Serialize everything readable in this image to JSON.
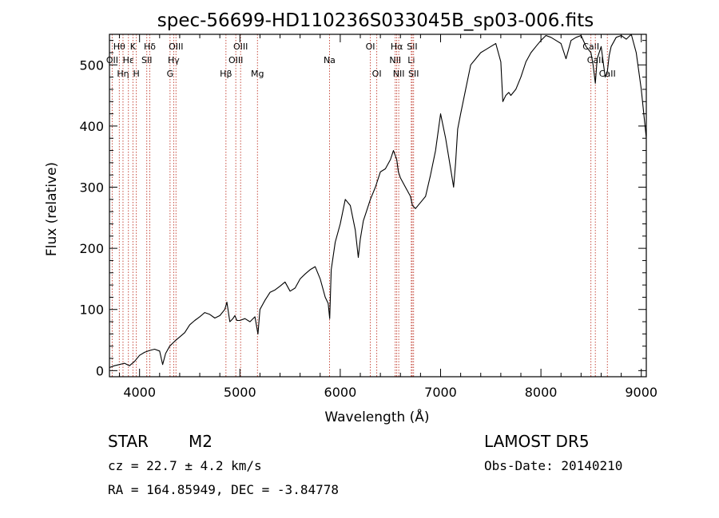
{
  "chart_data": {
    "type": "line",
    "title": "spec-56699-HD110236S033045B_sp03-006.fits",
    "xlabel": "Wavelength (Å)",
    "ylabel": "Flux (relative)",
    "xlim": [
      3700,
      9050
    ],
    "ylim": [
      -10,
      550
    ],
    "xticks": [
      4000,
      5000,
      6000,
      7000,
      8000,
      9000
    ],
    "yticks": [
      0,
      100,
      200,
      300,
      400,
      500
    ],
    "grid": false,
    "line_color": "#000000",
    "marker_color": "#c0392b",
    "series": [
      {
        "x": [
          3700,
          3750,
          3800,
          3850,
          3900,
          3950,
          4000,
          4050,
          4100,
          4150,
          4200,
          4230,
          4260,
          4300,
          4350,
          4400,
          4450,
          4500,
          4550,
          4600,
          4650,
          4700,
          4750,
          4800,
          4850,
          4870,
          4900,
          4930,
          4950,
          4970,
          5000,
          5050,
          5100,
          5150,
          5180,
          5200,
          5250,
          5300,
          5350,
          5400,
          5450,
          5500,
          5550,
          5600,
          5650,
          5700,
          5750,
          5800,
          5850,
          5880,
          5895,
          5910,
          5950,
          6000,
          6050,
          6100,
          6150,
          6180,
          6200,
          6230,
          6260,
          6300,
          6350,
          6400,
          6450,
          6500,
          6530,
          6563,
          6580,
          6600,
          6650,
          6700,
          6720,
          6750,
          6800,
          6850,
          6900,
          6950,
          7000,
          7050,
          7100,
          7130,
          7150,
          7170,
          7200,
          7250,
          7300,
          7350,
          7400,
          7450,
          7500,
          7550,
          7600,
          7620,
          7650,
          7680,
          7700,
          7750,
          7800,
          7850,
          7900,
          7950,
          8000,
          8050,
          8100,
          8150,
          8200,
          8250,
          8300,
          8350,
          8400,
          8450,
          8498,
          8520,
          8542,
          8560,
          8600,
          8640,
          8662,
          8680,
          8700,
          8750,
          8800,
          8850,
          8900,
          8950,
          9000,
          9050
        ],
        "y": [
          5,
          8,
          10,
          12,
          8,
          15,
          25,
          30,
          33,
          35,
          32,
          10,
          28,
          40,
          48,
          55,
          62,
          75,
          82,
          88,
          95,
          92,
          86,
          90,
          100,
          112,
          80,
          85,
          90,
          82,
          82,
          85,
          80,
          88,
          60,
          100,
          115,
          128,
          132,
          138,
          145,
          130,
          135,
          150,
          158,
          165,
          170,
          150,
          120,
          110,
          85,
          165,
          210,
          240,
          280,
          270,
          230,
          185,
          215,
          245,
          260,
          280,
          300,
          325,
          330,
          345,
          360,
          345,
          325,
          315,
          300,
          285,
          270,
          265,
          275,
          285,
          320,
          360,
          420,
          380,
          330,
          300,
          340,
          395,
          420,
          460,
          500,
          510,
          520,
          525,
          530,
          535,
          505,
          440,
          450,
          455,
          450,
          460,
          480,
          505,
          520,
          530,
          540,
          548,
          545,
          540,
          535,
          510,
          540,
          545,
          548,
          530,
          520,
          500,
          470,
          510,
          530,
          480,
          490,
          515,
          530,
          545,
          548,
          542,
          550,
          520,
          460,
          380
        ]
      }
    ],
    "line_markers": [
      {
        "label": "Hθ",
        "x": 3798,
        "row": 1
      },
      {
        "label": "OII",
        "x": 3727,
        "row": 2
      },
      {
        "label": "Hη",
        "x": 3835,
        "row": 3
      },
      {
        "label": "Hε",
        "x": 3889,
        "row": 2
      },
      {
        "label": "K",
        "x": 3934,
        "row": 1
      },
      {
        "label": "H",
        "x": 3968,
        "row": 3
      },
      {
        "label": "SII",
        "x": 4072,
        "row": 2
      },
      {
        "label": "Hδ",
        "x": 4102,
        "row": 1
      },
      {
        "label": "G",
        "x": 4304,
        "row": 3
      },
      {
        "label": "Hγ",
        "x": 4340,
        "row": 2
      },
      {
        "label": "OIII",
        "x": 4363,
        "row": 1
      },
      {
        "label": "Hβ",
        "x": 4861,
        "row": 3
      },
      {
        "label": "OIII",
        "x": 4959,
        "row": 2
      },
      {
        "label": "OIII",
        "x": 5007,
        "row": 1
      },
      {
        "label": "Mg",
        "x": 5175,
        "row": 3
      },
      {
        "label": "Na",
        "x": 5893,
        "row": 2
      },
      {
        "label": "OI",
        "x": 6300,
        "row": 1
      },
      {
        "label": "OI",
        "x": 6364,
        "row": 3
      },
      {
        "label": "NII",
        "x": 6548,
        "row": 2
      },
      {
        "label": "Hα",
        "x": 6563,
        "row": 1
      },
      {
        "label": "NII",
        "x": 6583,
        "row": 3
      },
      {
        "label": "Li",
        "x": 6708,
        "row": 2
      },
      {
        "label": "SII",
        "x": 6717,
        "row": 1
      },
      {
        "label": "SII",
        "x": 6731,
        "row": 3
      },
      {
        "label": "CaII",
        "x": 8498,
        "row": 1
      },
      {
        "label": "CaII",
        "x": 8542,
        "row": 2
      },
      {
        "label": "CaII",
        "x": 8662,
        "row": 3
      }
    ]
  },
  "info": {
    "star_label": "STAR",
    "subclass": "M2",
    "survey": "LAMOST DR5",
    "cz": "cz = 22.7 ± 4.2 km/s",
    "obs_date": "Obs-Date: 20140210",
    "coords": "RA = 164.85949, DEC =  -3.84778"
  }
}
